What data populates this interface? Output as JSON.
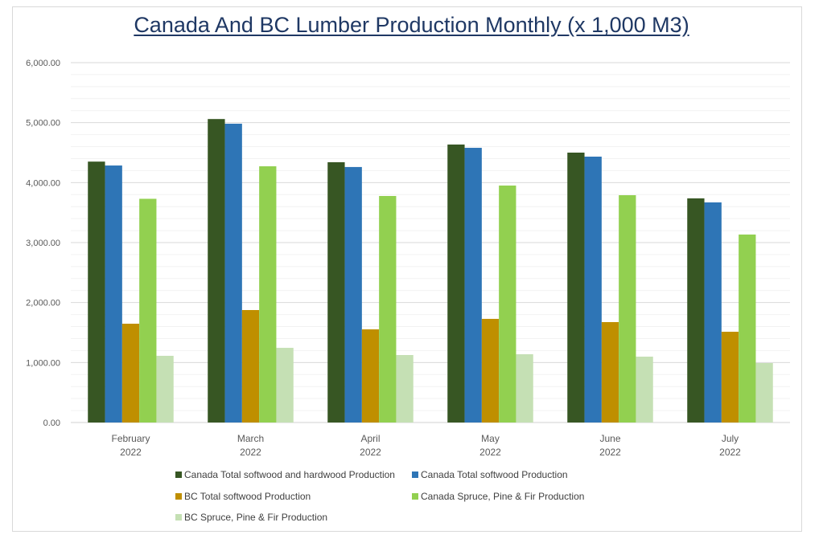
{
  "chart_data": {
    "type": "bar",
    "title": "Canada And BC Lumber Production Monthly (x 1,000 M3)",
    "xlabel": "",
    "ylabel": "",
    "ylim": [
      0,
      6000
    ],
    "y_ticks": [
      "0.00",
      "1,000.00",
      "2,000.00",
      "3,000.00",
      "4,000.00",
      "5,000.00",
      "6,000.00"
    ],
    "y_tick_values": [
      0,
      1000,
      2000,
      3000,
      4000,
      5000,
      6000
    ],
    "minor_grid_step": 200,
    "grid": true,
    "legend_position": "bottom",
    "categories": [
      {
        "month": "February",
        "year": "2022"
      },
      {
        "month": "March",
        "year": "2022"
      },
      {
        "month": "April",
        "year": "2022"
      },
      {
        "month": "May",
        "year": "2022"
      },
      {
        "month": "June",
        "year": "2022"
      },
      {
        "month": "July",
        "year": "2022"
      }
    ],
    "series": [
      {
        "name": "Canada Total softwood and hardwood Production",
        "color": "#375623",
        "values": [
          4350,
          5060,
          4340,
          4635,
          4500,
          3737
        ]
      },
      {
        "name": "Canada Total softwood Production",
        "color": "#2e75b6",
        "values": [
          4285,
          4982,
          4260,
          4580,
          4433,
          3670
        ]
      },
      {
        "name": "BC Total softwood Production",
        "color": "#bf8f00",
        "values": [
          1647,
          1875,
          1553,
          1728,
          1674,
          1513
        ]
      },
      {
        "name": "Canada Spruce, Pine & Fir Production",
        "color": "#92d050",
        "values": [
          3730,
          4272,
          3777,
          3951,
          3790,
          3134
        ]
      },
      {
        "name": "BC Spruce, Pine & Fir Production",
        "color": "#c5e0b4",
        "values": [
          1112,
          1245,
          1125,
          1138,
          1098,
          991
        ]
      }
    ]
  }
}
